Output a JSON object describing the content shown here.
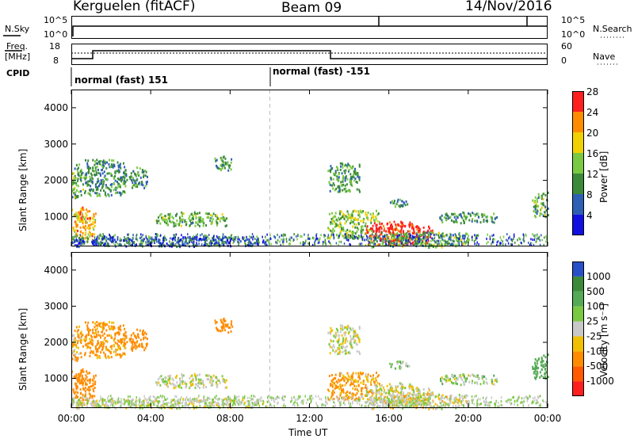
{
  "header": {
    "station": "Kerguelen (fitACF)",
    "beam": "Beam 09",
    "date": "14/Nov/2016"
  },
  "top_panel": {
    "left_label": "N.Sky",
    "left_ticks": [
      "10^5",
      "10^0"
    ],
    "right_ticks": [
      "10^5",
      "10^0"
    ],
    "right_label": "N.Search"
  },
  "freq_panel": {
    "label_line1": "Freq.",
    "label_line2": "[MHz]",
    "left_ticks": [
      "18",
      "8"
    ],
    "right_ticks": [
      "60",
      "0"
    ],
    "right_label": "Nave"
  },
  "cpid": {
    "label": "CPID",
    "segments": [
      "normal (fast) 151",
      "normal (fast) -151"
    ]
  },
  "chart_data": [
    {
      "type": "heatmap",
      "title": "",
      "xlabel": "",
      "ylabel": "Slant Range [km]",
      "colorbar_label": "Power [dB]",
      "colorbar_ticks": [
        "4",
        "8",
        "12",
        "16",
        "20",
        "24",
        "28"
      ],
      "colorbar_colors": [
        "#1010e0",
        "#2d5fb5",
        "#3a8a3a",
        "#7ac943",
        "#f0d000",
        "#ff8c00",
        "#ff1f1f"
      ],
      "x_ticks": [
        "00:00",
        "04:00",
        "08:00",
        "12:00",
        "16:00",
        "20:00",
        "00:00"
      ],
      "y_ticks": [
        "1000",
        "2000",
        "3000",
        "4000"
      ],
      "xlim_hours": [
        0,
        24
      ],
      "ylim_km": [
        180,
        4500
      ]
    },
    {
      "type": "heatmap",
      "title": "",
      "xlabel": "Time UT",
      "ylabel": "Slant Range [km]",
      "colorbar_label": "Velocity [m s⁻¹]",
      "colorbar_ticks": [
        "1000",
        "500",
        "100",
        "25",
        "-25",
        "-100",
        "-500",
        "-1000"
      ],
      "colorbar_colors": [
        "#2850c8",
        "#3a8a3a",
        "#55aa55",
        "#7ac943",
        "#c8c8c8",
        "#f0c000",
        "#ff8c00",
        "#ff5a00",
        "#ff1f1f"
      ],
      "x_ticks": [
        "00:00",
        "04:00",
        "08:00",
        "12:00",
        "16:00",
        "20:00",
        "00:00"
      ],
      "y_ticks": [
        "1000",
        "2000",
        "3000",
        "4000"
      ],
      "xlim_hours": [
        0,
        24
      ],
      "ylim_km": [
        180,
        4500
      ]
    }
  ],
  "blobs": [
    {
      "t0": 0.0,
      "t1": 1.2,
      "r0": 300,
      "r1": 1300,
      "p": 22,
      "v": -150
    },
    {
      "t0": 0.0,
      "t1": 0.6,
      "r0": 1500,
      "r1": 2500,
      "p": 14,
      "v": -60
    },
    {
      "t0": 0.6,
      "t1": 2.8,
      "r0": 1600,
      "r1": 2600,
      "p": 12,
      "v": -80
    },
    {
      "t0": 2.9,
      "t1": 3.8,
      "r0": 1800,
      "r1": 2400,
      "p": 12,
      "v": -120
    },
    {
      "t0": 4.2,
      "t1": 7.8,
      "r0": 750,
      "r1": 1150,
      "p": 14,
      "v": 0
    },
    {
      "t0": 7.2,
      "t1": 8.1,
      "r0": 2300,
      "r1": 2700,
      "p": 12,
      "v": -200
    },
    {
      "t0": 0.0,
      "t1": 10.0,
      "r0": 200,
      "r1": 480,
      "p": 8,
      "v": 0
    },
    {
      "t0": 12.9,
      "t1": 14.5,
      "r0": 1700,
      "r1": 2500,
      "p": 13,
      "v": 0
    },
    {
      "t0": 12.9,
      "t1": 15.5,
      "r0": 400,
      "r1": 1200,
      "p": 16,
      "v": -80
    },
    {
      "t0": 14.8,
      "t1": 18.2,
      "r0": 250,
      "r1": 900,
      "p": 29,
      "v": 0
    },
    {
      "t0": 15.0,
      "t1": 20.0,
      "r0": 180,
      "r1": 600,
      "p": 14,
      "v": -20
    },
    {
      "t0": 18.5,
      "t1": 21.5,
      "r0": 850,
      "r1": 1150,
      "p": 12,
      "v": 30
    },
    {
      "t0": 23.2,
      "t1": 24.0,
      "r0": 1000,
      "r1": 1700,
      "p": 14,
      "v": 120
    },
    {
      "t0": 16.0,
      "t1": 17.0,
      "r0": 1300,
      "r1": 1500,
      "p": 11,
      "v": 40
    }
  ],
  "noise_colors": [
    "#1010e0",
    "#2d5fb5",
    "#3a8a3a",
    "#7ac943",
    "#c8c8c8"
  ]
}
